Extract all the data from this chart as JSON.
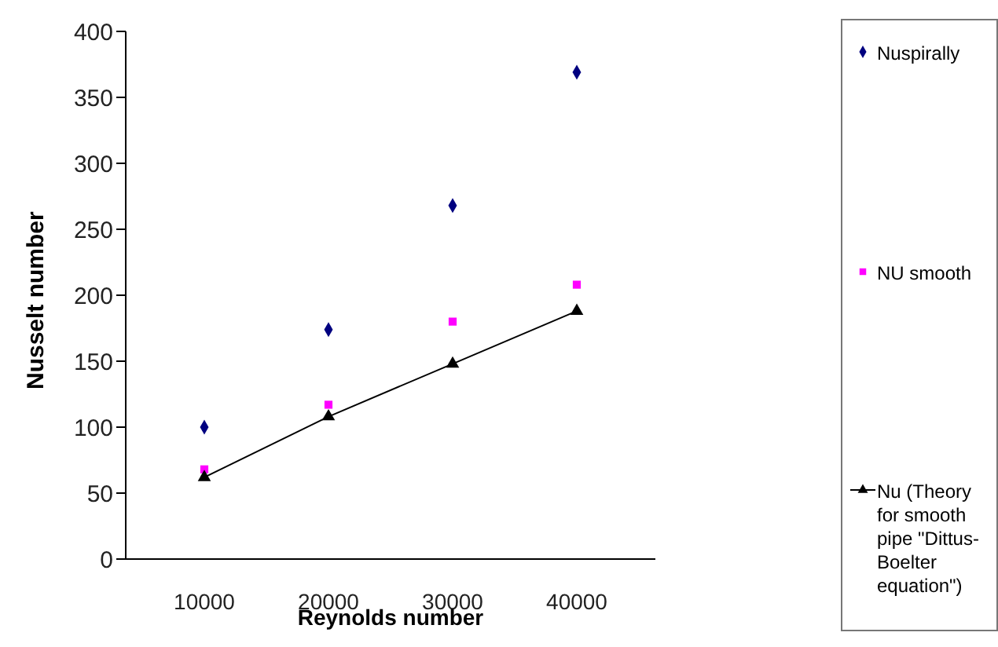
{
  "chart_data": {
    "type": "scatter",
    "xlabel": "Reynolds number",
    "ylabel": "Nusselt number",
    "categories": [
      "10000",
      "20000",
      "30000",
      "40000"
    ],
    "series": [
      {
        "name": "Nuspirally",
        "marker": "diamond",
        "color": "#000080",
        "values": [
          100,
          174,
          268,
          369
        ]
      },
      {
        "name": "NU smooth",
        "marker": "square",
        "color": "#ff00ff",
        "values": [
          68,
          117,
          180,
          208
        ]
      },
      {
        "name": "Nu (Theory for smooth pipe \"Dittus-Boelter equation\")",
        "type": "line",
        "marker": "triangle",
        "color": "#000000",
        "values": [
          62,
          108,
          148,
          188
        ]
      }
    ],
    "ylim": [
      0,
      400
    ],
    "yticks": [
      0,
      50,
      100,
      150,
      200,
      250,
      300,
      350,
      400
    ],
    "grid": false,
    "legend": "right"
  }
}
